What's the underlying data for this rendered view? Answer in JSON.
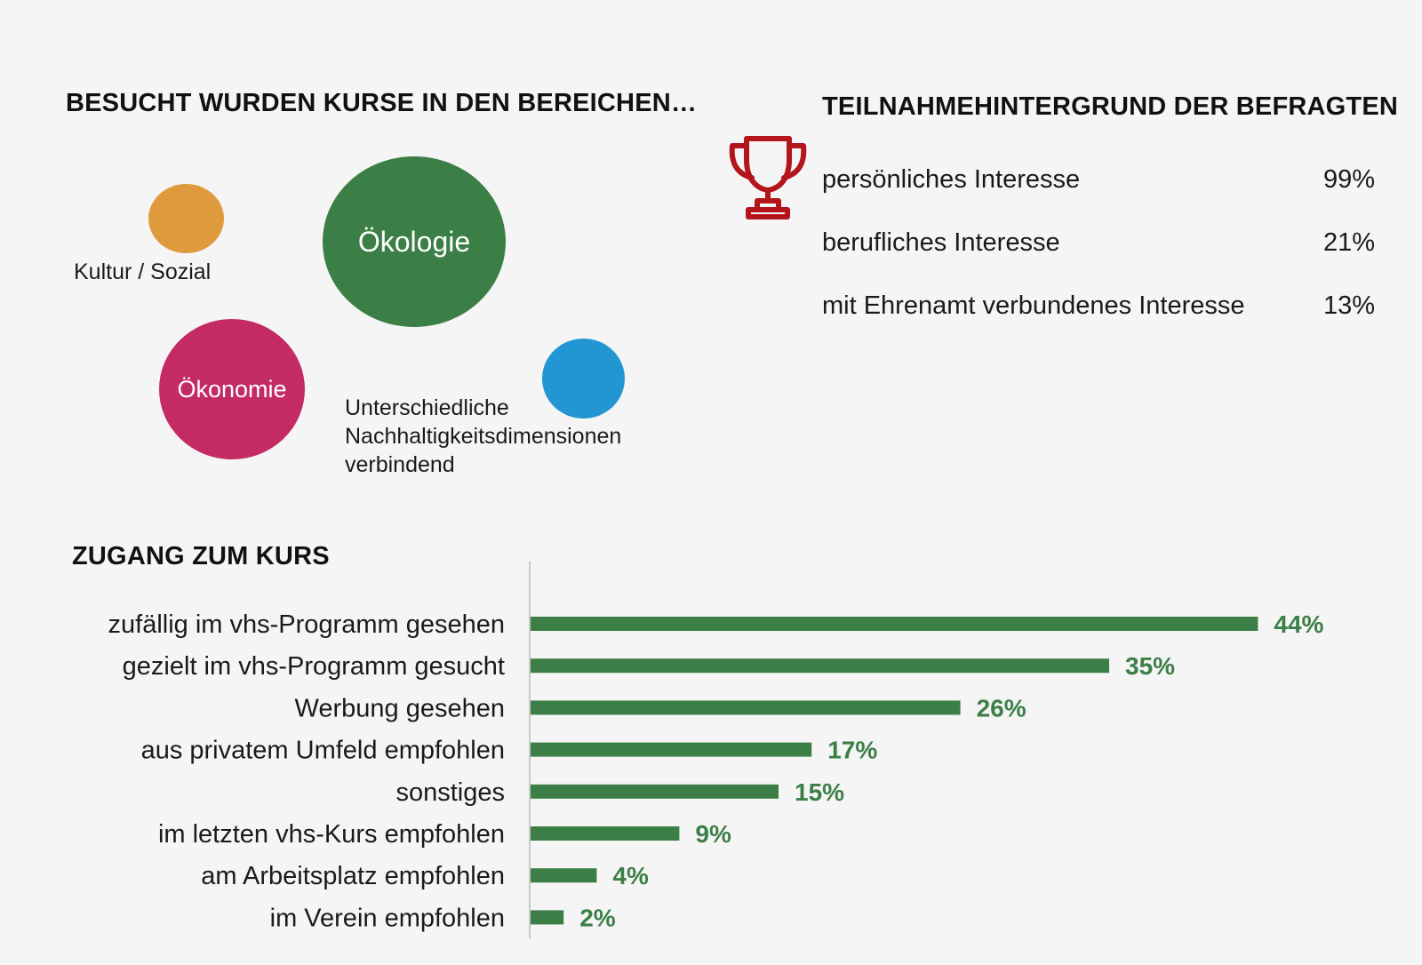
{
  "colors": {
    "background": "#f5f5f5",
    "kultur": "#e09a3e",
    "oekologie": "#3c7f46",
    "oekonomie": "#c42a63",
    "dimensionen": "#2196d3",
    "trophy": "#b3151b",
    "bar": "#3c7f46"
  },
  "section_bereiche": {
    "title": "BESUCHT WURDEN KURSE IN DEN BEREICHEN…",
    "bubbles": [
      {
        "label": "Kultur / Sozial"
      },
      {
        "label": "Ökologie"
      },
      {
        "label": "Ökonomie"
      },
      {
        "label_lines": [
          "Unterschiedliche",
          "Nachhaltigkeitsdimensionen",
          "verbindend"
        ]
      }
    ]
  },
  "section_hintergrund": {
    "title": "TEILNAHMEHINTERGRUND DER BEFRAGTEN",
    "icon": "trophy-icon",
    "rows": [
      {
        "label": "persönliches Interesse",
        "value": "99%"
      },
      {
        "label": "berufliches Interesse",
        "value": "21%"
      },
      {
        "label": "mit Ehrenamt verbundenes Interesse",
        "value": "13%"
      }
    ]
  },
  "chart_data": {
    "type": "bar",
    "orientation": "horizontal",
    "title": "ZUGANG ZUM KURS",
    "categories": [
      "zufällig im vhs-Programm gesehen",
      "gezielt im vhs-Programm gesucht",
      "Werbung gesehen",
      "aus privatem Umfeld empfohlen",
      "sonstiges",
      "im letzten vhs-Kurs empfohlen",
      "am Arbeitsplatz empfohlen",
      "im Verein empfohlen"
    ],
    "values": [
      44,
      35,
      26,
      17,
      15,
      9,
      4,
      2
    ],
    "value_labels": [
      "44%",
      "35%",
      "26%",
      "17%",
      "15%",
      "9%",
      "4%",
      "2%"
    ],
    "grid": false,
    "color": "#3c7f46"
  }
}
